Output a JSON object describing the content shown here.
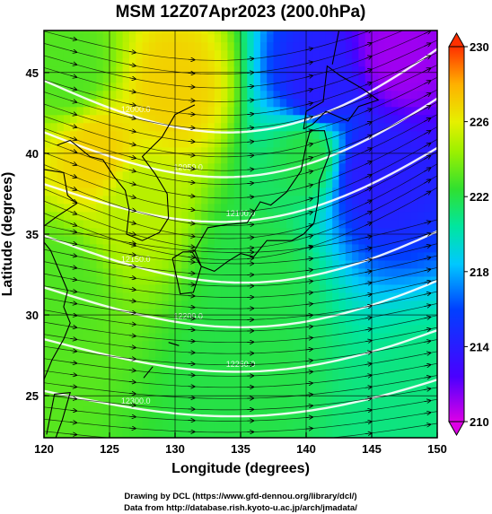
{
  "chart_data": {
    "type": "heatmap",
    "title": "MSM 12Z07Apr2023 (200.0hPa)",
    "xlabel": "Longitude (degrees)",
    "ylabel": "Latitude  (degrees)",
    "xlim": [
      120,
      150
    ],
    "ylim": [
      22.4,
      47.6
    ],
    "xticks": [
      120,
      125,
      130,
      135,
      140,
      145,
      150
    ],
    "yticks": [
      25,
      30,
      35,
      40,
      45
    ],
    "colorbar": {
      "min": 210,
      "max": 230,
      "ticks": [
        210,
        214,
        218,
        222,
        226,
        230
      ],
      "extend": "both"
    },
    "field_samples": [
      {
        "lon": 124,
        "lat": 40,
        "value": 227
      },
      {
        "lon": 130,
        "lat": 44,
        "value": 227
      },
      {
        "lon": 127,
        "lat": 37,
        "value": 225
      },
      {
        "lon": 122,
        "lat": 45,
        "value": 223
      },
      {
        "lon": 121,
        "lat": 32,
        "value": 223
      },
      {
        "lon": 136,
        "lat": 33,
        "value": 222
      },
      {
        "lon": 135,
        "lat": 27,
        "value": 222
      },
      {
        "lon": 140,
        "lat": 40,
        "value": 222
      },
      {
        "lon": 149,
        "lat": 24,
        "value": 221
      },
      {
        "lon": 141,
        "lat": 44,
        "value": 214
      },
      {
        "lon": 145,
        "lat": 39,
        "value": 214
      },
      {
        "lon": 147,
        "lat": 46,
        "value": 211
      }
    ],
    "contour_labels": [
      "12000.0",
      "12050.0",
      "12100.0",
      "12150.0",
      "12200.0",
      "12250.0",
      "12300.0"
    ],
    "credits": [
      "Drawing by DCL (https://www.gfd-dennou.org/library/dcl/)",
      "Data from http://database.rish.kyoto-u.ac.jp/arch/jmadata/"
    ]
  }
}
